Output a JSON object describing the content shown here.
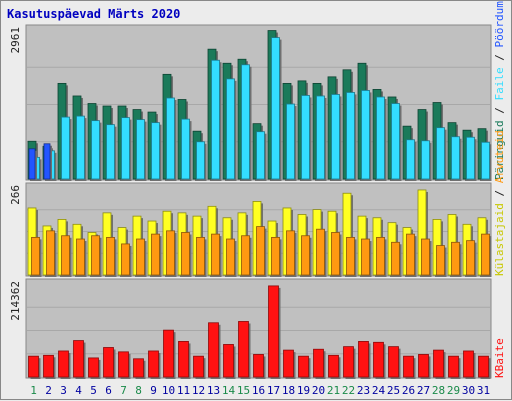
{
  "chart_data": {
    "title": "Kasutuspäevad Märts 2020",
    "days": [
      "1",
      "2",
      "3",
      "4",
      "5",
      "6",
      "7",
      "8",
      "9",
      "10",
      "11",
      "12",
      "13",
      "14",
      "15",
      "16",
      "17",
      "18",
      "19",
      "20",
      "21",
      "22",
      "23",
      "24",
      "25",
      "26",
      "27",
      "28",
      "29",
      "30",
      "31"
    ],
    "weekend_days": [
      "1",
      "7",
      "8",
      "14",
      "15",
      "21",
      "22",
      "28",
      "29"
    ],
    "colors": {
      "day_label": "#0000a0",
      "weekend_label": "#1a8a4a",
      "title": "#0000c0",
      "pages": "#1a7a5a",
      "files": "#33ddff",
      "hits": "#2255ff",
      "visits": "#ffff22",
      "sites": "#ff9911",
      "kbytes": "#ff1111"
    },
    "charts": [
      {
        "id": "top",
        "type": "bar",
        "ymax_label": "2961",
        "ylim": [
          0,
          2961
        ],
        "legend": [
          {
            "name": "Päringuid",
            "color": "#1a7a5a"
          },
          {
            "name": "Faile",
            "color": "#33ddff"
          },
          {
            "name": "Pöördumisi",
            "color": "#2255ff"
          }
        ],
        "series": [
          {
            "name": "Päringuid",
            "values": [
              750,
              650,
              1900,
              1650,
              1500,
              1450,
              1450,
              1380,
              1330,
              2080,
              1580,
              950,
              2580,
              2300,
              2380,
              1100,
              2950,
              1900,
              1950,
              1900,
              2030,
              2170,
              2300,
              1780,
              1630,
              1050,
              1380,
              1520,
              1120,
              970,
              1000
            ]
          },
          {
            "name": "Faile",
            "values": [
              430,
              560,
              1230,
              1250,
              1160,
              1080,
              1220,
              1180,
              1120,
              1610,
              1190,
              740,
              2360,
              1990,
              2270,
              940,
              2810,
              1490,
              1660,
              1650,
              1680,
              1720,
              1760,
              1630,
              1500,
              780,
              760,
              1020,
              840,
              830,
              730
            ]
          },
          {
            "name": "Pöördumisi",
            "values": [
              600,
              700,
              0,
              0,
              0,
              0,
              0,
              0,
              0,
              0,
              0,
              0,
              0,
              0,
              0,
              0,
              0,
              0,
              0,
              0,
              0,
              0,
              0,
              0,
              0,
              0,
              0,
              0,
              0,
              0,
              0
            ]
          }
        ]
      },
      {
        "id": "middle",
        "type": "bar",
        "ymax_label": "266",
        "ylim": [
          0,
          266
        ],
        "legend": [
          {
            "name": "Külastajaid",
            "color": "#ffff22"
          },
          {
            "name": "Arvuteid",
            "color": "#ff9911"
          }
        ],
        "series": [
          {
            "name": "Külastajaid",
            "values": [
              205,
              150,
              170,
              155,
              130,
              190,
              145,
              180,
              165,
              195,
              190,
              180,
              210,
              175,
              190,
              225,
              165,
              205,
              185,
              200,
              195,
              250,
              180,
              175,
              160,
              145,
              260,
              170,
              185,
              155,
              175
            ]
          },
          {
            "name": "Arvuteid",
            "values": [
              115,
              135,
              120,
              110,
              120,
              115,
              95,
              110,
              125,
              135,
              130,
              115,
              125,
              110,
              120,
              148,
              115,
              135,
              120,
              140,
              130,
              115,
              110,
              115,
              100,
              125,
              110,
              90,
              100,
              105,
              125
            ]
          }
        ]
      },
      {
        "id": "bottom",
        "type": "bar",
        "ymax_label": "214362",
        "ylim": [
          0,
          214362
        ],
        "legend": [
          {
            "name": "KBaite",
            "color": "#ff1111"
          }
        ],
        "series": [
          {
            "name": "KBaite",
            "values": [
              48000,
              50000,
              60000,
              84000,
              44000,
              68000,
              58000,
              42000,
              60000,
              108000,
              82000,
              48000,
              125000,
              75000,
              128000,
              52000,
              210000,
              62000,
              48000,
              64000,
              50000,
              70000,
              82000,
              80000,
              70000,
              48000,
              52000,
              62000,
              48000,
              60000,
              48000
            ]
          }
        ]
      }
    ]
  }
}
